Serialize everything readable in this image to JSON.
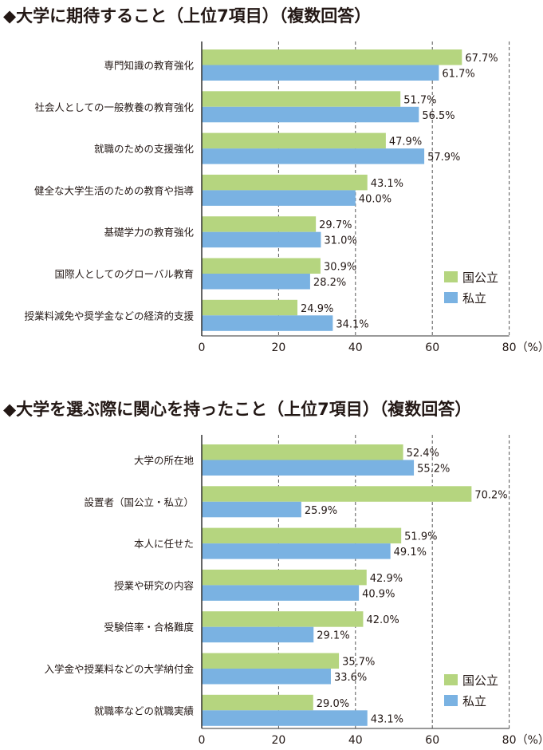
{
  "colors": {
    "national": "#b5d57f",
    "private": "#7ab2e2",
    "grid": "#555555",
    "axis": "#333333"
  },
  "chart_data": [
    {
      "type": "bar",
      "orientation": "horizontal",
      "title": "◆大学に期待すること（上位7項目）（複数回答）",
      "categories": [
        "専門知識の教育強化",
        "社会人としての一般教養の教育強化",
        "就職のための支援強化",
        "健全な大学生活のための教育や指導",
        "基礎学力の教育強化",
        "国際人としてのグローバル教育",
        "授業料減免や奨学金などの経済的支援"
      ],
      "series": [
        {
          "name": "国公立",
          "values": [
            67.7,
            51.7,
            47.9,
            43.1,
            29.7,
            30.9,
            24.9
          ]
        },
        {
          "name": "私立",
          "values": [
            61.7,
            56.5,
            57.9,
            40.0,
            31.0,
            28.2,
            34.1
          ]
        }
      ],
      "value_labels": [
        [
          "67.7%",
          "51.7%",
          "47.9%",
          "43.1%",
          "29.7%",
          "30.9%",
          "24.9%"
        ],
        [
          "61.7%",
          "56.5%",
          "57.9%",
          "40.0%",
          "31.0%",
          "28.2%",
          "34.1%"
        ]
      ],
      "xlim": [
        0,
        80
      ],
      "xticks": [
        "0",
        "20",
        "40",
        "60",
        "80"
      ],
      "unit": "（%）",
      "grid": "dashed vertical",
      "legend_position": "bottom-right"
    },
    {
      "type": "bar",
      "orientation": "horizontal",
      "title": "◆大学を選ぶ際に関心を持ったこと（上位7項目）（複数回答）",
      "categories": [
        "大学の所在地",
        "設置者（国公立・私立）",
        "本人に任せた",
        "授業や研究の内容",
        "受験倍率・合格難度",
        "入学金や授業料などの大学納付金",
        "就職率などの就職実績"
      ],
      "series": [
        {
          "name": "国公立",
          "values": [
            52.4,
            70.2,
            51.9,
            42.9,
            42.0,
            35.7,
            29.0
          ]
        },
        {
          "name": "私立",
          "values": [
            55.2,
            25.9,
            49.1,
            40.9,
            29.1,
            33.6,
            43.1
          ]
        }
      ],
      "value_labels": [
        [
          "52.4%",
          "70.2%",
          "51.9%",
          "42.9%",
          "42.0%",
          "35.7%",
          "29.0%"
        ],
        [
          "55.2%",
          "25.9%",
          "49.1%",
          "40.9%",
          "29.1%",
          "33.6%",
          "43.1%"
        ]
      ],
      "xlim": [
        0,
        80
      ],
      "xticks": [
        "0",
        "20",
        "40",
        "60",
        "80"
      ],
      "unit": "（%）",
      "grid": "dashed vertical",
      "legend_position": "bottom-right"
    }
  ]
}
